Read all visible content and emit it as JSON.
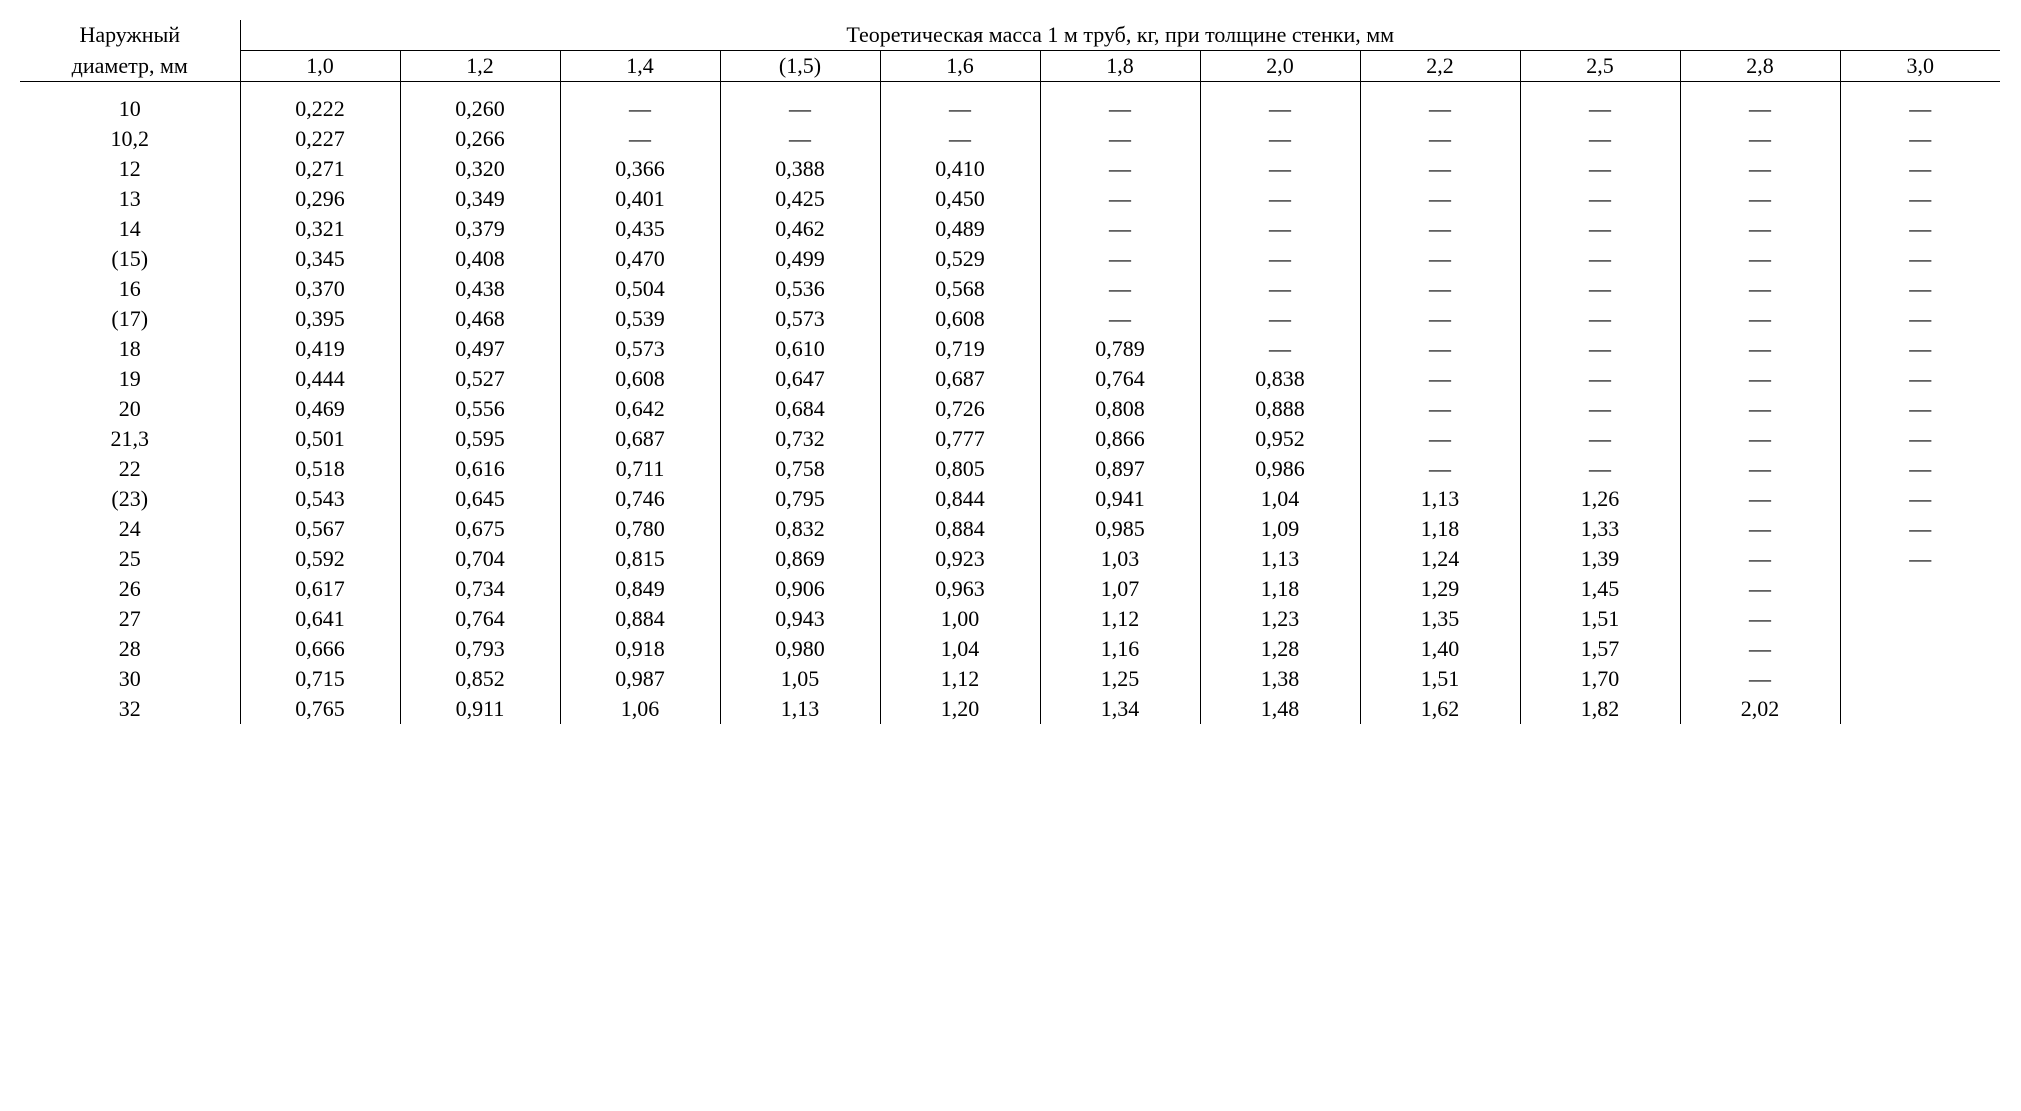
{
  "header": {
    "row_label_line1": "Наружный",
    "row_label_line2": "диаметр, мм",
    "group_label": "Теоретическая масса 1 м труб, кг, при толщине стенки, мм",
    "thickness": [
      "1,0",
      "1,2",
      "1,4",
      "(1,5)",
      "1,6",
      "1,8",
      "2,0",
      "2,2",
      "2,5",
      "2,8",
      "3,0"
    ]
  },
  "rows": [
    {
      "d": "10",
      "v": [
        "0,222",
        "0,260",
        "—",
        "—",
        "—",
        "—",
        "—",
        "—",
        "—",
        "—",
        "—"
      ]
    },
    {
      "d": "10,2",
      "v": [
        "0,227",
        "0,266",
        "—",
        "—",
        "—",
        "—",
        "—",
        "—",
        "—",
        "—",
        "—"
      ]
    },
    {
      "d": "12",
      "v": [
        "0,271",
        "0,320",
        "0,366",
        "0,388",
        "0,410",
        "—",
        "—",
        "—",
        "—",
        "—",
        "—"
      ]
    },
    {
      "d": "13",
      "v": [
        "0,296",
        "0,349",
        "0,401",
        "0,425",
        "0,450",
        "—",
        "—",
        "—",
        "—",
        "—",
        "—"
      ]
    },
    {
      "d": "14",
      "v": [
        "0,321",
        "0,379",
        "0,435",
        "0,462",
        "0,489",
        "—",
        "—",
        "—",
        "—",
        "—",
        "—"
      ]
    },
    {
      "d": "(15)",
      "v": [
        "0,345",
        "0,408",
        "0,470",
        "0,499",
        "0,529",
        "—",
        "—",
        "—",
        "—",
        "—",
        "—"
      ]
    },
    {
      "d": "16",
      "v": [
        "0,370",
        "0,438",
        "0,504",
        "0,536",
        "0,568",
        "—",
        "—",
        "—",
        "—",
        "—",
        "—"
      ]
    },
    {
      "d": "(17)",
      "v": [
        "0,395",
        "0,468",
        "0,539",
        "0,573",
        "0,608",
        "—",
        "—",
        "—",
        "—",
        "—",
        "—"
      ]
    },
    {
      "d": "18",
      "v": [
        "0,419",
        "0,497",
        "0,573",
        "0,610",
        "0,719",
        "0,789",
        "—",
        "—",
        "—",
        "—",
        "—"
      ]
    },
    {
      "d": "19",
      "v": [
        "0,444",
        "0,527",
        "0,608",
        "0,647",
        "0,687",
        "0,764",
        "0,838",
        "—",
        "—",
        "—",
        "—"
      ]
    },
    {
      "d": "20",
      "v": [
        "0,469",
        "0,556",
        "0,642",
        "0,684",
        "0,726",
        "0,808",
        "0,888",
        "—",
        "—",
        "—",
        "—"
      ]
    },
    {
      "d": "21,3",
      "v": [
        "0,501",
        "0,595",
        "0,687",
        "0,732",
        "0,777",
        "0,866",
        "0,952",
        "—",
        "—",
        "—",
        "—"
      ]
    },
    {
      "d": "22",
      "v": [
        "0,518",
        "0,616",
        "0,711",
        "0,758",
        "0,805",
        "0,897",
        "0,986",
        "—",
        "—",
        "—",
        "—"
      ]
    },
    {
      "d": "(23)",
      "v": [
        "0,543",
        "0,645",
        "0,746",
        "0,795",
        "0,844",
        "0,941",
        "1,04",
        "1,13",
        "1,26",
        "—",
        "—"
      ]
    },
    {
      "d": "24",
      "v": [
        "0,567",
        "0,675",
        "0,780",
        "0,832",
        "0,884",
        "0,985",
        "1,09",
        "1,18",
        "1,33",
        "—",
        "—"
      ]
    },
    {
      "d": "25",
      "v": [
        "0,592",
        "0,704",
        "0,815",
        "0,869",
        "0,923",
        "1,03",
        "1,13",
        "1,24",
        "1,39",
        "—",
        "—"
      ]
    },
    {
      "d": "26",
      "v": [
        "0,617",
        "0,734",
        "0,849",
        "0,906",
        "0,963",
        "1,07",
        "1,18",
        "1,29",
        "1,45",
        "—",
        ""
      ]
    },
    {
      "d": "27",
      "v": [
        "0,641",
        "0,764",
        "0,884",
        "0,943",
        "1,00",
        "1,12",
        "1,23",
        "1,35",
        "1,51",
        "—",
        ""
      ]
    },
    {
      "d": "28",
      "v": [
        "0,666",
        "0,793",
        "0,918",
        "0,980",
        "1,04",
        "1,16",
        "1,28",
        "1,40",
        "1,57",
        "—",
        ""
      ]
    },
    {
      "d": "30",
      "v": [
        "0,715",
        "0,852",
        "0,987",
        "1,05",
        "1,12",
        "1,25",
        "1,38",
        "1,51",
        "1,70",
        "—",
        ""
      ]
    },
    {
      "d": "32",
      "v": [
        "0,765",
        "0,911",
        "1,06",
        "1,13",
        "1,20",
        "1,34",
        "1,48",
        "1,62",
        "1,82",
        "2,02",
        ""
      ]
    }
  ],
  "style": {
    "font_family": "Times New Roman",
    "font_size_pt": 16,
    "border_color": "#000000",
    "background_color": "#ffffff",
    "text_color": "#000000"
  }
}
